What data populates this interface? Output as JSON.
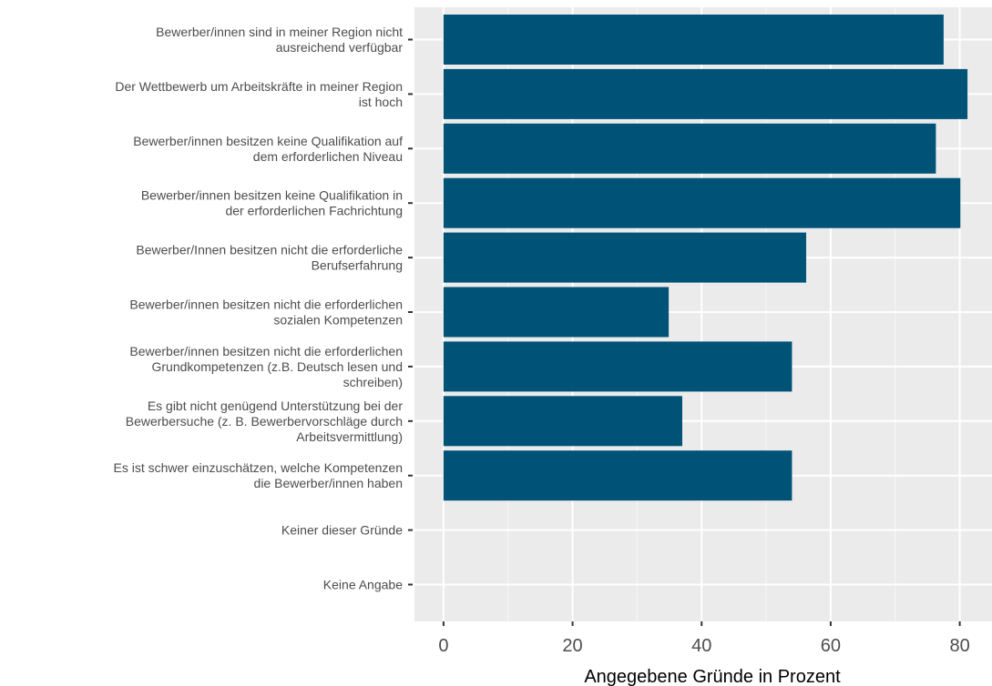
{
  "chart_data": {
    "type": "bar",
    "orientation": "horizontal",
    "xlabel": "Angegebene Gründe in Prozent",
    "xlim": [
      -4.5,
      85
    ],
    "xticks": [
      0,
      20,
      40,
      60,
      80
    ],
    "grid": true,
    "bar_color": "#005276",
    "panel_color": "#ebebeb",
    "categories": [
      [
        "Bewerber/innen sind in meiner Region nicht",
        "ausreichend verfügbar"
      ],
      [
        "Der Wettbewerb um Arbeitskräfte in meiner Region",
        "ist hoch"
      ],
      [
        "Bewerber/innen besitzen keine Qualifikation auf",
        "dem erforderlichen Niveau"
      ],
      [
        "Bewerber/innen besitzen keine Qualifikation in",
        "der erforderlichen Fachrichtung"
      ],
      [
        "Bewerber/Innen besitzen nicht die erforderliche",
        "Berufserfahrung"
      ],
      [
        "Bewerber/innen besitzen nicht die erforderlichen",
        "sozialen Kompetenzen"
      ],
      [
        "Bewerber/innen besitzen nicht die erforderlichen",
        "Grundkompetenzen (z.B. Deutsch lesen und",
        "schreiben)"
      ],
      [
        "Es gibt nicht genügend Unterstützung bei der",
        "Bewerbersuche (z. B. Bewerbervorschläge durch",
        "Arbeitsvermittlung)"
      ],
      [
        "Es ist schwer einzuschätzen, welche Kompetenzen",
        "die Bewerber/innen haben"
      ],
      [
        "Keiner dieser Gründe"
      ],
      [
        "Keine Angabe"
      ]
    ],
    "values": [
      77.5,
      81.2,
      76.3,
      80.1,
      56.2,
      34.9,
      54.0,
      37.0,
      54.0,
      0,
      0
    ]
  }
}
